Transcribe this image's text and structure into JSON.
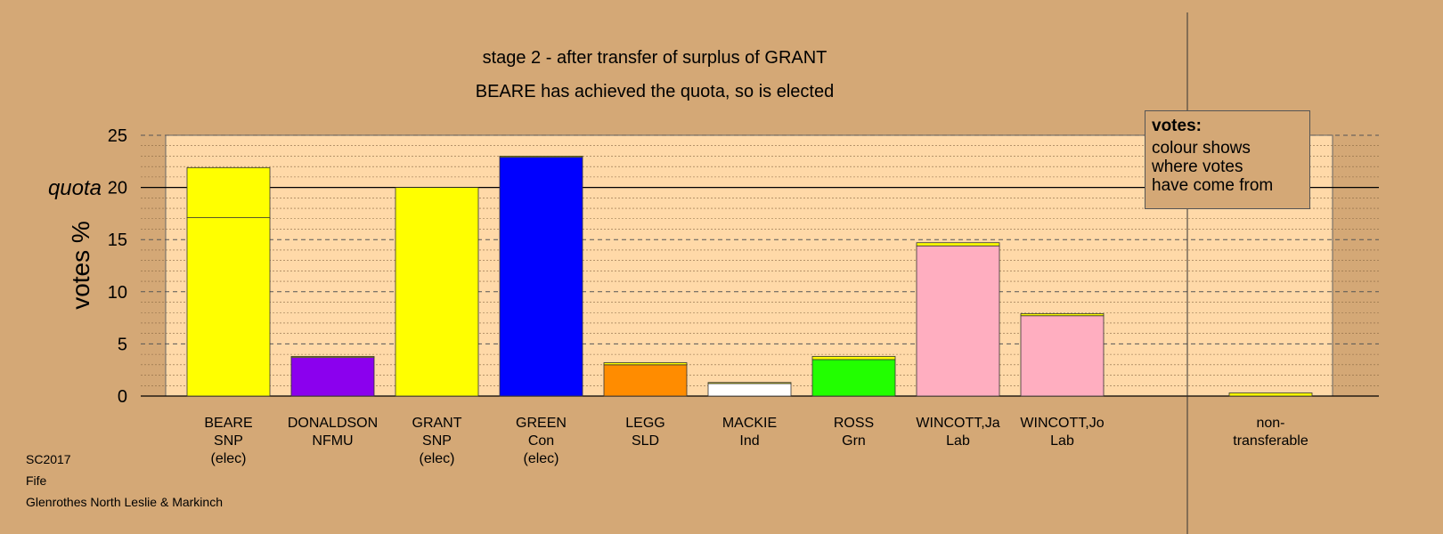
{
  "chart_data": {
    "type": "bar",
    "stacked": true,
    "title": "stage 2 - after transfer of surplus of GRANT",
    "subtitle": "BEARE has achieved the quota, so is elected",
    "ylabel": "votes %",
    "quota_label": "quota",
    "quota": 20,
    "ylim": [
      0,
      25
    ],
    "yticks": [
      0,
      5,
      10,
      15,
      20,
      25
    ],
    "grid": true,
    "candidates": [
      {
        "name": "BEARE",
        "party": "SNP",
        "status": "(elec)",
        "segments": [
          {
            "value": 17.1,
            "color": "#ffff00"
          },
          {
            "value": 4.8,
            "color": "#ffff00"
          }
        ]
      },
      {
        "name": "DONALDSON",
        "party": "NFMU",
        "status": "",
        "segments": [
          {
            "value": 3.7,
            "color": "#8b00ee"
          },
          {
            "value": 0.1,
            "color": "#ffff00"
          }
        ]
      },
      {
        "name": "GRANT",
        "party": "SNP",
        "status": "(elec)",
        "segments": [
          {
            "value": 20.0,
            "color": "#ffff00"
          }
        ]
      },
      {
        "name": "GREEN",
        "party": "Con",
        "status": "(elec)",
        "segments": [
          {
            "value": 22.9,
            "color": "#0000ff"
          },
          {
            "value": 0.1,
            "color": "#ffff00"
          }
        ]
      },
      {
        "name": "LEGG",
        "party": "SLD",
        "status": "",
        "segments": [
          {
            "value": 3.0,
            "color": "#ff8c00"
          },
          {
            "value": 0.2,
            "color": "#ffff00"
          }
        ]
      },
      {
        "name": "MACKIE",
        "party": "Ind",
        "status": "",
        "segments": [
          {
            "value": 1.2,
            "color": "#ffffff"
          },
          {
            "value": 0.1,
            "color": "#ffff00"
          }
        ]
      },
      {
        "name": "ROSS",
        "party": "Grn",
        "status": "",
        "segments": [
          {
            "value": 3.5,
            "color": "#22ff00"
          },
          {
            "value": 0.3,
            "color": "#ffff00"
          }
        ]
      },
      {
        "name": "WINCOTT,Ja",
        "party": "Lab",
        "status": "",
        "segments": [
          {
            "value": 14.4,
            "color": "#ffaec0"
          },
          {
            "value": 0.3,
            "color": "#ffff00"
          }
        ]
      },
      {
        "name": "WINCOTT,Jo",
        "party": "Lab",
        "status": "",
        "segments": [
          {
            "value": 7.7,
            "color": "#ffaec0"
          },
          {
            "value": 0.2,
            "color": "#ffff00"
          }
        ]
      }
    ],
    "nontransferable": {
      "label_line1": "non-",
      "label_line2": "transferable",
      "value": 0.3,
      "color": "#ffff00"
    },
    "colors": {
      "background": "#d4a876",
      "plot_area": "#ffd9a8"
    }
  },
  "legend": {
    "title": "votes:",
    "line1": "colour shows",
    "line2": "where votes",
    "line3": "have come from"
  },
  "meta": {
    "election": "SC2017",
    "council": "Fife",
    "ward": "Glenrothes North Leslie & Markinch"
  }
}
